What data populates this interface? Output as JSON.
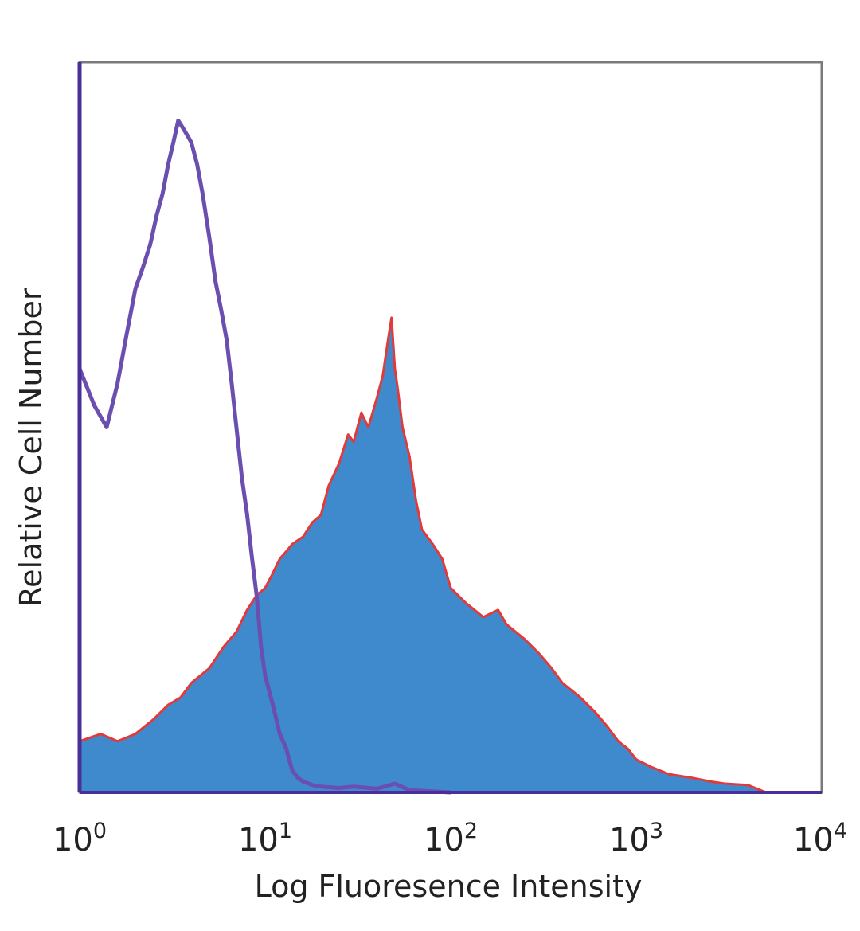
{
  "chart_data": {
    "type": "area",
    "title": "",
    "xlabel": "Log Fluoresence Intensity",
    "ylabel": "Relative Cell Number",
    "x_scale": "log",
    "xlim": [
      1,
      10000
    ],
    "ylim": [
      0,
      100
    ],
    "grid": false,
    "legend": "none",
    "x_ticks": [
      {
        "base": "10",
        "exp": "0"
      },
      {
        "base": "10",
        "exp": "1"
      },
      {
        "base": "10",
        "exp": "2"
      },
      {
        "base": "10",
        "exp": "3"
      },
      {
        "base": "10",
        "exp": "4"
      }
    ],
    "series": [
      {
        "style": "outline",
        "color": "#6a4fb0",
        "x": [
          1,
          1.2,
          1.4,
          1.6,
          1.8,
          2,
          2.2,
          2.4,
          2.6,
          2.8,
          3,
          3.2,
          3.4,
          3.6,
          3.8,
          4,
          4.3,
          4.6,
          5,
          5.4,
          5.8,
          6.2,
          6.6,
          7,
          7.5,
          8,
          8.5,
          9,
          9.5,
          10,
          11,
          12,
          13,
          14,
          15,
          16,
          18,
          20,
          25,
          30,
          40,
          50,
          60,
          100
        ],
        "y": [
          58,
          53,
          50,
          56,
          63,
          69,
          72,
          75,
          79,
          82,
          86,
          89,
          92,
          91,
          90,
          89,
          86,
          82,
          76,
          70,
          66,
          62,
          56,
          50,
          43,
          38,
          32,
          27,
          20,
          16,
          12,
          8,
          6,
          3,
          2,
          1.5,
          1,
          0.8,
          0.6,
          0.8,
          0.5,
          1.2,
          0.3,
          0
        ]
      },
      {
        "style": "filled",
        "color": "#3f8acc",
        "edge_color": "#e23a3a",
        "x": [
          1,
          1.3,
          1.6,
          2,
          2.5,
          3,
          3.5,
          4,
          5,
          6,
          7,
          8,
          9,
          10,
          11,
          12,
          13,
          14,
          16,
          18,
          20,
          22,
          25,
          28,
          30,
          33,
          36,
          40,
          43,
          46,
          48,
          50,
          52,
          55,
          60,
          65,
          70,
          80,
          90,
          100,
          120,
          150,
          180,
          200,
          250,
          300,
          350,
          400,
          500,
          600,
          700,
          800,
          900,
          1000,
          1200,
          1500,
          2000,
          2500,
          3000,
          4000,
          5000,
          10000
        ],
        "y": [
          7,
          8,
          7,
          8,
          10,
          12,
          13,
          15,
          17,
          20,
          22,
          25,
          27,
          28,
          30,
          32,
          33,
          34,
          35,
          37,
          38,
          42,
          45,
          49,
          48,
          52,
          50,
          54,
          57,
          62,
          65,
          58,
          55,
          50,
          46,
          40,
          36,
          34,
          32,
          28,
          26,
          24,
          25,
          23,
          21,
          19,
          17,
          15,
          13,
          11,
          9,
          7,
          6,
          4.5,
          3.5,
          2.5,
          2,
          1.5,
          1.2,
          1,
          0,
          0
        ]
      }
    ]
  }
}
